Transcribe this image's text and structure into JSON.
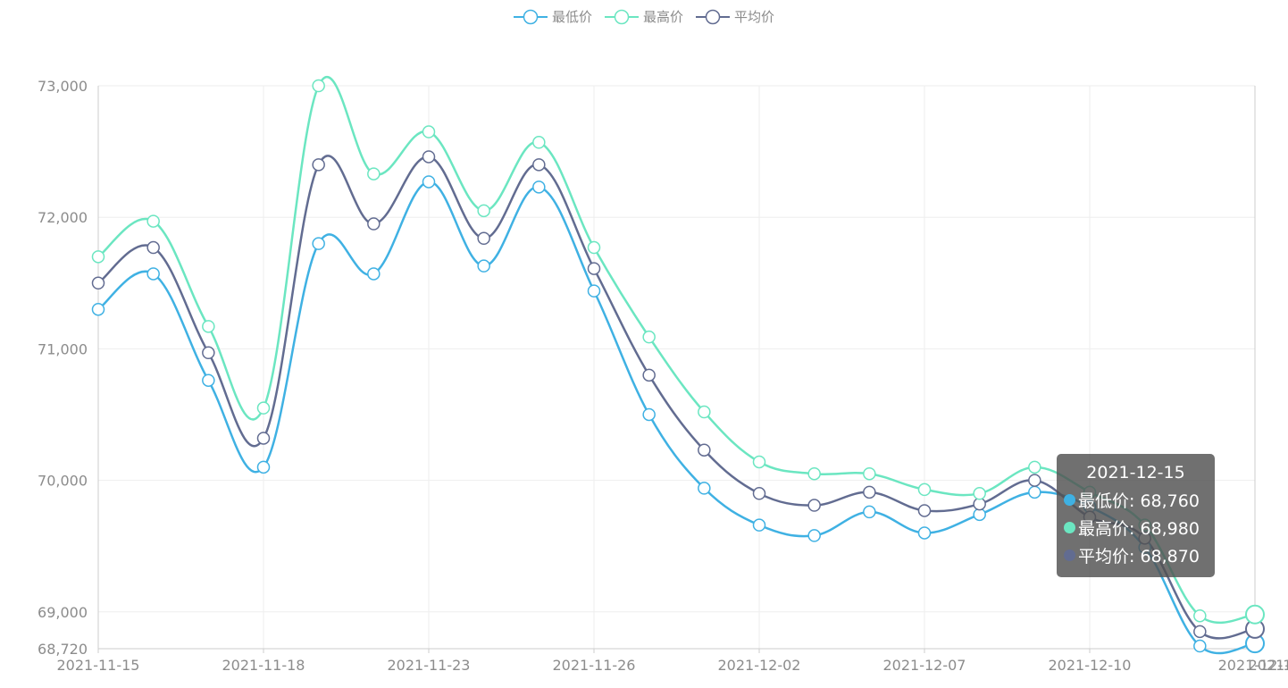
{
  "legend": [
    {
      "name": "最低价",
      "color": "#3fb1e3"
    },
    {
      "name": "最高价",
      "color": "#6be6c1"
    },
    {
      "name": "平均价",
      "color": "#626c91"
    }
  ],
  "tooltip": {
    "title": "2021-12-15",
    "rows": [
      {
        "label": "最低价: 68,760",
        "color": "#3fb1e3"
      },
      {
        "label": "最高价: 68,980",
        "color": "#6be6c1"
      },
      {
        "label": "平均价: 68,870",
        "color": "#626c91"
      }
    ]
  },
  "chart_data": {
    "type": "line",
    "x": [
      "2021-11-15",
      "2021-11-16",
      "2021-11-17",
      "2021-11-18",
      "2021-11-19",
      "2021-11-22",
      "2021-11-23",
      "2021-11-24",
      "2021-11-25",
      "2021-11-26",
      "2021-11-29",
      "2021-11-30",
      "2021-12-02",
      "2021-12-03",
      "2021-12-06",
      "2021-12-07",
      "2021-12-08",
      "2021-12-09",
      "2021-12-10",
      "2021-12-13",
      "2021-12-14",
      "2021-12-15"
    ],
    "x_tick_labels": [
      "2021-11-15",
      "2021-11-18",
      "2021-11-23",
      "2021-11-26",
      "2021-12-02",
      "2021-12-07",
      "2021-12-10",
      "2021-12-1"
    ],
    "x_tick_every": 3,
    "y_ticks": [
      "68,720",
      "69,000",
      "70,000",
      "71,000",
      "72,000",
      "73,000"
    ],
    "y_tick_values": [
      68720,
      69000,
      70000,
      71000,
      72000,
      73000
    ],
    "ylim": [
      68720,
      73000
    ],
    "smooth": true,
    "grid": true,
    "highlight_index": 21,
    "series": [
      {
        "name": "最低价",
        "color": "#3fb1e3",
        "values": [
          71300,
          71570,
          70760,
          70100,
          71800,
          71570,
          72270,
          71630,
          72230,
          71440,
          70500,
          69940,
          69660,
          69580,
          69760,
          69600,
          69740,
          69910,
          69800,
          69490,
          68740,
          68760
        ]
      },
      {
        "name": "最高价",
        "color": "#6be6c1",
        "values": [
          71700,
          71970,
          71170,
          70550,
          73000,
          72330,
          72650,
          72050,
          72570,
          71770,
          71090,
          70520,
          70140,
          70050,
          70050,
          69930,
          69900,
          70100,
          69910,
          69660,
          68970,
          68980
        ]
      },
      {
        "name": "平均价",
        "color": "#626c91",
        "values": [
          71500,
          71770,
          70970,
          70320,
          72400,
          71950,
          72460,
          71840,
          72400,
          71610,
          70800,
          70230,
          69900,
          69810,
          69910,
          69770,
          69820,
          70000,
          69720,
          69560,
          68850,
          68870
        ]
      }
    ]
  }
}
